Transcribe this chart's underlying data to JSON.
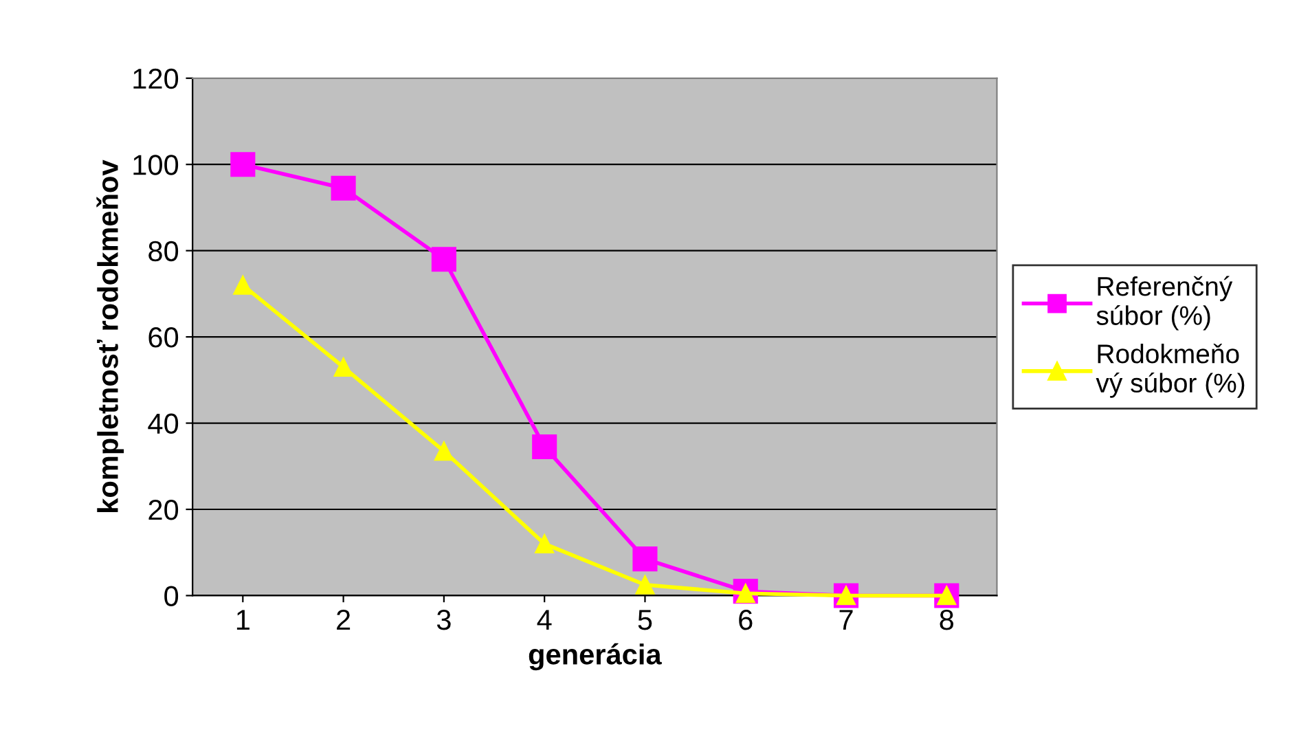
{
  "chart_data": {
    "type": "line",
    "xlabel": "generácia",
    "ylabel": "kompletnosť rodokmeňov",
    "categories": [
      "1",
      "2",
      "3",
      "4",
      "5",
      "6",
      "7",
      "8"
    ],
    "series": [
      {
        "name": "Referenčný\nsúbor (%)",
        "color": "#ff00ff",
        "marker": "square",
        "values": [
          100,
          94.5,
          78,
          34.5,
          8.5,
          1,
          0,
          0
        ]
      },
      {
        "name": "Rodokmeňo\nvý súbor (%)",
        "color": "#ffff00",
        "marker": "triangle",
        "values": [
          72,
          53,
          33.5,
          12,
          2.5,
          0.5,
          0,
          0
        ]
      }
    ],
    "ylim": [
      0,
      120
    ],
    "yticks": [
      0,
      20,
      40,
      60,
      80,
      100,
      120
    ],
    "grid": "y",
    "legend": "right"
  }
}
